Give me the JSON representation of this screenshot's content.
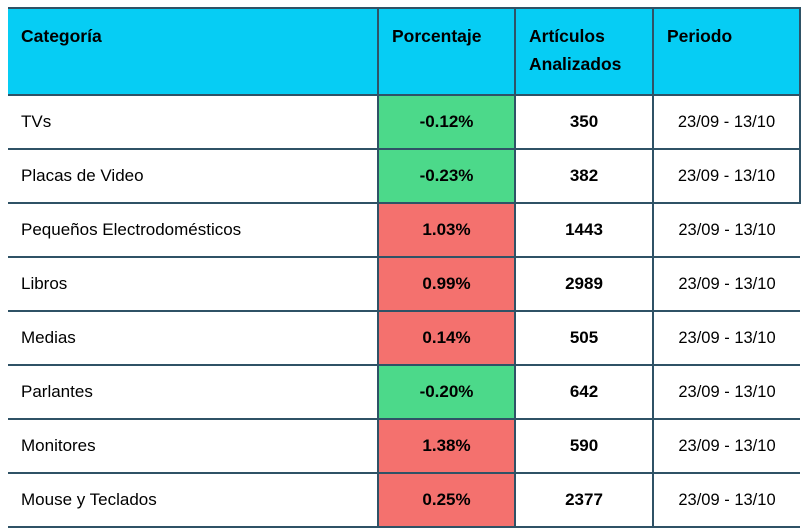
{
  "header": {
    "categoria": "Categoría",
    "porcentaje": "Porcentaje",
    "articulos": "Artículos Analizados",
    "periodo": "Periodo"
  },
  "rows": [
    {
      "category": "TVs",
      "percent": "-0.12%",
      "articles": "350",
      "period": "23/09 - 13/10",
      "trend": "down"
    },
    {
      "category": "Placas de Video",
      "percent": "-0.23%",
      "articles": "382",
      "period": "23/09 - 13/10",
      "trend": "down"
    },
    {
      "category": "Pequeños Electrodomésticos",
      "percent": "1.03%",
      "articles": "1443",
      "period": "23/09 - 13/10",
      "trend": "up"
    },
    {
      "category": "Libros",
      "percent": "0.99%",
      "articles": "2989",
      "period": "23/09 - 13/10",
      "trend": "up"
    },
    {
      "category": "Medias",
      "percent": "0.14%",
      "articles": "505",
      "period": "23/09 - 13/10",
      "trend": "up"
    },
    {
      "category": "Parlantes",
      "percent": "-0.20%",
      "articles": "642",
      "period": "23/09 - 13/10",
      "trend": "down"
    },
    {
      "category": "Monitores",
      "percent": "1.38%",
      "articles": "590",
      "period": "23/09 - 13/10",
      "trend": "up"
    },
    {
      "category": "Mouse y Teclados",
      "percent": "0.25%",
      "articles": "2377",
      "period": "23/09 - 13/10",
      "trend": "up"
    }
  ],
  "colors": {
    "header_bg": "#06CDF4",
    "positive_bg": "#F4716E",
    "negative_bg": "#4CD98A",
    "border": "#2F5266"
  },
  "chart_data": {
    "type": "table",
    "title": "",
    "columns": [
      "Categoría",
      "Porcentaje",
      "Artículos Analizados",
      "Periodo"
    ],
    "rows": [
      [
        "TVs",
        "-0.12%",
        350,
        "23/09 - 13/10"
      ],
      [
        "Placas de Video",
        "-0.23%",
        382,
        "23/09 - 13/10"
      ],
      [
        "Pequeños Electrodomésticos",
        "1.03%",
        1443,
        "23/09 - 13/10"
      ],
      [
        "Libros",
        "0.99%",
        2989,
        "23/09 - 13/10"
      ],
      [
        "Medias",
        "0.14%",
        505,
        "23/09 - 13/10"
      ],
      [
        "Parlantes",
        "-0.20%",
        642,
        "23/09 - 13/10"
      ],
      [
        "Monitores",
        "1.38%",
        590,
        "23/09 - 13/10"
      ],
      [
        "Mouse y Teclados",
        "0.25%",
        2377,
        "23/09 - 13/10"
      ]
    ],
    "legend": "green background = negative price change, red background = positive price change"
  }
}
